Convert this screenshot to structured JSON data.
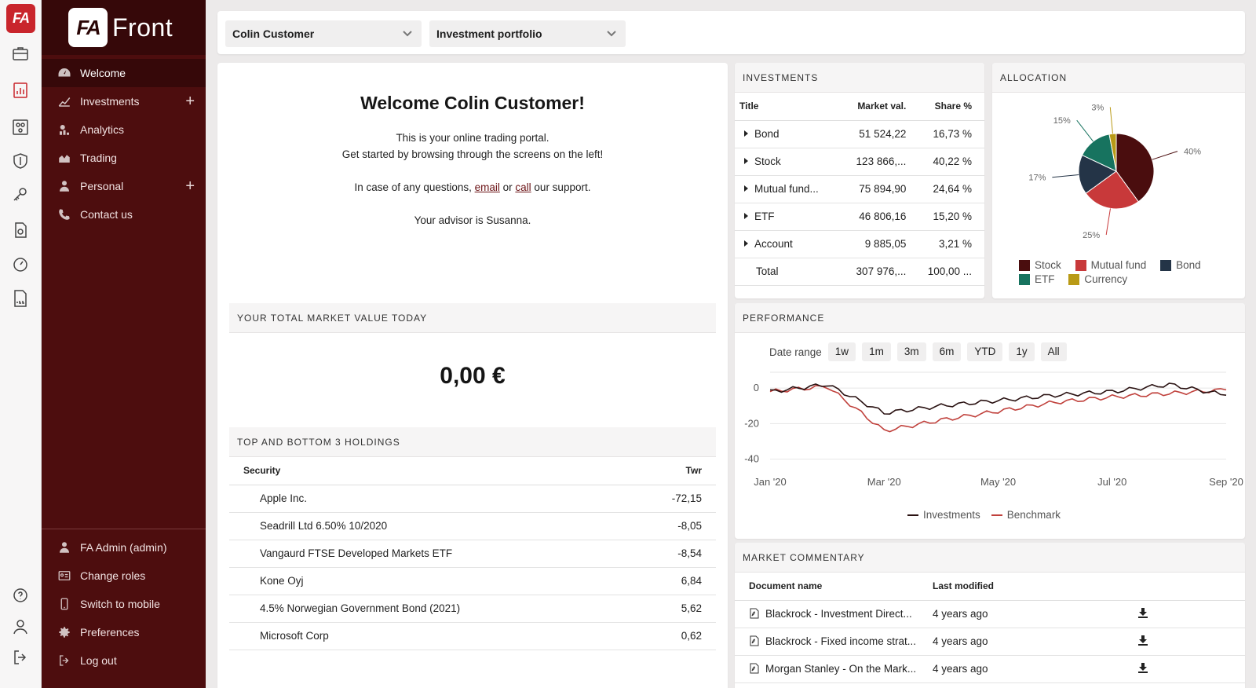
{
  "rail": {
    "logo": "FA",
    "icons": [
      "briefcase-icon",
      "analytics-report-icon",
      "mind-map-icon",
      "shield-icon",
      "key-icon",
      "document-chart-icon",
      "speedometer-icon",
      "log-file-icon",
      "help-icon",
      "user-icon",
      "logout-icon"
    ]
  },
  "sidebar": {
    "brand_mark": "FA",
    "brand_name": "Front",
    "items": [
      {
        "label": "Welcome",
        "icon": "dashboard-icon"
      },
      {
        "label": "Investments",
        "icon": "chart-line-icon",
        "plus": "+"
      },
      {
        "label": "Analytics",
        "icon": "analytics-icon"
      },
      {
        "label": "Trading",
        "icon": "area-chart-icon"
      },
      {
        "label": "Personal",
        "icon": "person-icon",
        "plus": "+"
      },
      {
        "label": "Contact us",
        "icon": "phone-icon"
      }
    ],
    "bottom_items": [
      {
        "label": "FA Admin (admin)",
        "icon": "person-icon"
      },
      {
        "label": "Change roles",
        "icon": "id-card-icon"
      },
      {
        "label": "Switch to mobile",
        "icon": "mobile-icon"
      },
      {
        "label": "Preferences",
        "icon": "gear-icon"
      },
      {
        "label": "Log out",
        "icon": "logout-icon"
      }
    ]
  },
  "topbar": {
    "customer_select": "Colin Customer",
    "portfolio_select": "Investment portfolio"
  },
  "welcome": {
    "title": "Welcome Colin Customer!",
    "line1": "This is your online trading portal.",
    "line2": "Get started by browsing through the screens on the left!",
    "support_prefix": "In case of any questions, ",
    "email_link": "email",
    "support_mid": " or ",
    "call_link": "call",
    "support_suffix": " our support.",
    "advisor": "Your advisor is Susanna."
  },
  "market_value": {
    "title": "YOUR TOTAL MARKET VALUE TODAY",
    "value": "0,00 €"
  },
  "holdings": {
    "title": "TOP AND BOTTOM 3 HOLDINGS",
    "col_security": "Security",
    "col_twr": "Twr",
    "rows": [
      {
        "security": "Apple Inc.",
        "twr": "-72,15"
      },
      {
        "security": "Seadrill Ltd 6.50% 10/2020",
        "twr": "-8,05"
      },
      {
        "security": "Vangaurd FTSE Developed Markets ETF",
        "twr": "-8,54"
      },
      {
        "security": "Kone Oyj",
        "twr": "6,84"
      },
      {
        "security": "4.5% Norwegian Government Bond (2021)",
        "twr": "5,62"
      },
      {
        "security": "Microsoft Corp",
        "twr": "0,62"
      }
    ]
  },
  "investments": {
    "title": "INVESTMENTS",
    "col_title": "Title",
    "col_market": "Market val.",
    "col_share": "Share %",
    "rows": [
      {
        "title": "Bond",
        "market": "51 524,22",
        "share": "16,73 %"
      },
      {
        "title": "Stock",
        "market": "123 866,...",
        "share": "40,22 %"
      },
      {
        "title": "Mutual fund...",
        "market": "75 894,90",
        "share": "24,64 %"
      },
      {
        "title": "ETF",
        "market": "46 806,16",
        "share": "15,20 %"
      },
      {
        "title": "Account",
        "market": "9 885,05",
        "share": "3,21 %"
      }
    ],
    "total": {
      "title": "Total",
      "market": "307 976,...",
      "share": "100,00 ..."
    }
  },
  "allocation": {
    "title": "ALLOCATION",
    "legend": [
      {
        "name": "Stock",
        "color": "#4a0d0e"
      },
      {
        "name": "Mutual fund",
        "color": "#c8393a"
      },
      {
        "name": "Bond",
        "color": "#243447"
      },
      {
        "name": "ETF",
        "color": "#17735f"
      },
      {
        "name": "Currency",
        "color": "#b99a16"
      }
    ]
  },
  "performance": {
    "title": "PERFORMANCE",
    "date_range_label": "Date range",
    "ranges": [
      "1w",
      "1m",
      "3m",
      "6m",
      "YTD",
      "1y",
      "All"
    ],
    "legend": [
      {
        "name": "Investments",
        "color": "#2a1212"
      },
      {
        "name": "Benchmark",
        "color": "#c0413c"
      }
    ]
  },
  "commentary": {
    "title": "MARKET COMMENTARY",
    "col_name": "Document name",
    "col_modified": "Last modified",
    "rows": [
      {
        "name": "Blackrock - Investment Direct...",
        "modified": "4 years ago"
      },
      {
        "name": "Blackrock - Fixed income strat...",
        "modified": "4 years ago"
      },
      {
        "name": "Morgan Stanley - On the Mark...",
        "modified": "4 years ago"
      }
    ]
  },
  "chart_data": [
    {
      "type": "pie",
      "categories": [
        "Stock",
        "Mutual fund",
        "Bond",
        "ETF",
        "Currency"
      ],
      "values": [
        40,
        25,
        17,
        15,
        3
      ],
      "data_labels": [
        "40%",
        "25%",
        "17%",
        "15%",
        "3%"
      ],
      "colors": [
        "#4a0d0e",
        "#c8393a",
        "#243447",
        "#17735f",
        "#b99a16"
      ],
      "legend": "bottom"
    },
    {
      "type": "line",
      "x": [
        "Jan '20",
        "Feb '20",
        "Mar '20",
        "Apr '20",
        "May '20",
        "Jun '20",
        "Jul '20",
        "Aug '20",
        "Sep '20"
      ],
      "x_ticks": [
        "Jan '20",
        "Mar '20",
        "May '20",
        "Jul '20",
        "Sep '20"
      ],
      "y_ticks": [
        0,
        -20,
        -40
      ],
      "ylim": [
        -45,
        8
      ],
      "series": [
        {
          "name": "Investments",
          "color": "#2a1212",
          "values": [
            -2,
            2,
            -14,
            -10,
            -7,
            -4,
            -2,
            2,
            -4
          ]
        },
        {
          "name": "Benchmark",
          "color": "#c0413c",
          "values": [
            -2,
            1,
            -24,
            -18,
            -13,
            -8,
            -5,
            -3,
            -1
          ]
        }
      ],
      "legend": "bottom"
    }
  ]
}
